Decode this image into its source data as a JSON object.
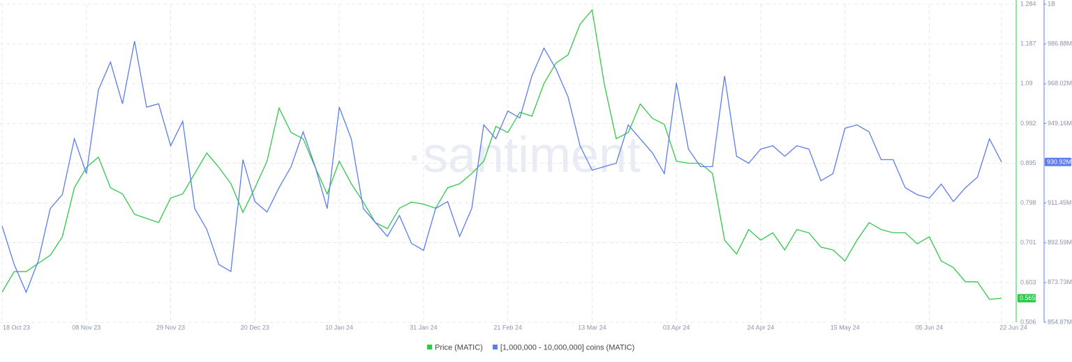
{
  "chart_data": {
    "type": "line",
    "watermark": "·santiment",
    "categories": [
      "18 Oct 23",
      null,
      null,
      null,
      null,
      null,
      null,
      "08 Nov 23",
      null,
      null,
      null,
      null,
      null,
      null,
      "29 Nov 23",
      null,
      null,
      null,
      null,
      null,
      null,
      "20 Dec 23",
      null,
      null,
      null,
      null,
      null,
      null,
      "10 Jan 24",
      null,
      null,
      null,
      null,
      null,
      null,
      "31 Jan 24",
      null,
      null,
      null,
      null,
      null,
      null,
      "21 Feb 24",
      null,
      null,
      null,
      null,
      null,
      null,
      "13 Mar 24",
      null,
      null,
      null,
      null,
      null,
      null,
      "03 Apr 24",
      null,
      null,
      null,
      null,
      null,
      null,
      "24 Apr 24",
      null,
      null,
      null,
      null,
      null,
      null,
      "15 May 24",
      null,
      null,
      null,
      null,
      null,
      null,
      "05 Jun 24",
      null,
      null,
      null,
      null,
      null,
      "22 Jun 24"
    ],
    "series": [
      {
        "name": "Price (MATIC)",
        "color": "#2fc94a",
        "axis": "y",
        "values": [
          0.58,
          0.63,
          0.63,
          0.65,
          0.67,
          0.715,
          0.835,
          0.885,
          0.91,
          0.835,
          0.82,
          0.77,
          0.76,
          0.75,
          0.81,
          0.82,
          0.87,
          0.92,
          0.885,
          0.845,
          0.775,
          0.835,
          0.9,
          1.03,
          0.97,
          0.955,
          0.885,
          0.82,
          0.9,
          0.845,
          0.8,
          0.75,
          0.735,
          0.785,
          0.8,
          0.795,
          0.785,
          0.835,
          0.845,
          0.87,
          0.9,
          0.985,
          0.97,
          1.02,
          1.01,
          1.09,
          1.14,
          1.16,
          1.235,
          1.27,
          1.09,
          0.955,
          0.97,
          1.04,
          1.005,
          0.99,
          0.9,
          0.895,
          0.895,
          0.87,
          0.707,
          0.673,
          0.733,
          0.707,
          0.725,
          0.683,
          0.733,
          0.725,
          0.69,
          0.683,
          0.656,
          0.707,
          0.75,
          0.733,
          0.725,
          0.725,
          0.698,
          0.715,
          0.656,
          0.64,
          0.605,
          0.605,
          0.562,
          0.565
        ]
      },
      {
        "name": "[1,000,000 - 10,000,000] coins (MATIC)",
        "color": "#5b7cf0",
        "axis": "y2",
        "last_value_label": "930.92M",
        "values": [
          900500000,
          882300000,
          869100000,
          884000000,
          908800000,
          915400000,
          941900000,
          925400000,
          965100000,
          978300000,
          958500000,
          988200000,
          956900000,
          958500000,
          938600000,
          950200000,
          908800000,
          898900000,
          882300000,
          879000000,
          932000000,
          912100000,
          907200000,
          918700000,
          928700000,
          945200000,
          928700000,
          908800000,
          956900000,
          941900000,
          908800000,
          902200000,
          895600000,
          905500000,
          892300000,
          889000000,
          908800000,
          912100000,
          895600000,
          908800000,
          948500000,
          941900000,
          955100000,
          951800000,
          971700000,
          984900000,
          975000000,
          961800000,
          938600000,
          927000000,
          928700000,
          930300000,
          948500000,
          941900000,
          935300000,
          925400000,
          968400000,
          937000000,
          928700000,
          928700000,
          971700000,
          933600000,
          930300000,
          937000000,
          938600000,
          933600000,
          938600000,
          937000000,
          922000000,
          925400000,
          946900000,
          948500000,
          945200000,
          932000000,
          932000000,
          918700000,
          915400000,
          913800000,
          920400000,
          912100000,
          918700000,
          923700000,
          941900000,
          930920000
        ]
      }
    ],
    "ylim": [
      0.506,
      1.284
    ],
    "yticks": [
      0.506,
      0.603,
      0.701,
      0.798,
      0.895,
      0.992,
      1.09,
      1.187,
      1.284
    ],
    "y2lim": [
      854870000,
      1005740000
    ],
    "y2ticks": [
      {
        "value": 854870000,
        "label": "854.87M"
      },
      {
        "value": 873730000,
        "label": "873.73M"
      },
      {
        "value": 892590000,
        "label": "892.59M"
      },
      {
        "value": 911450000,
        "label": "911.45M"
      },
      {
        "value": 949160000,
        "label": "949.16M"
      },
      {
        "value": 968020000,
        "label": "968.02M"
      },
      {
        "value": 986880000,
        "label": "986.88M"
      },
      {
        "value": 1005740000,
        "label": "1B"
      }
    ],
    "grid": true
  }
}
